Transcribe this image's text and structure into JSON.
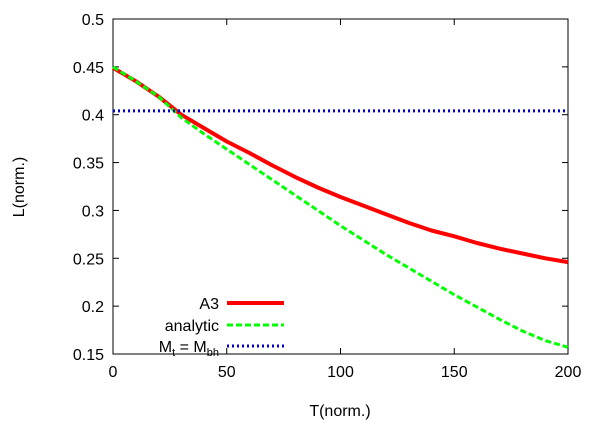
{
  "chart_data": {
    "type": "line",
    "xlabel": "T(norm.)",
    "ylabel": "L(norm.)",
    "xlim": [
      0,
      200
    ],
    "ylim": [
      0.15,
      0.5
    ],
    "x_ticks": [
      "0",
      "50",
      "100",
      "150",
      "200"
    ],
    "y_ticks": [
      "0.15",
      "0.2",
      "0.25",
      "0.3",
      "0.35",
      "0.4",
      "0.45",
      "0.5"
    ],
    "grid": false,
    "legend_position": "bottom-left",
    "series": [
      {
        "name": "A3",
        "style": "solid",
        "color": "#ff0000",
        "x": [
          0,
          10,
          20,
          30,
          40,
          50,
          60,
          70,
          80,
          90,
          100,
          110,
          120,
          130,
          140,
          150,
          160,
          170,
          180,
          190,
          200
        ],
        "y": [
          0.449,
          0.435,
          0.419,
          0.4,
          0.386,
          0.372,
          0.36,
          0.347,
          0.335,
          0.324,
          0.314,
          0.305,
          0.296,
          0.287,
          0.279,
          0.273,
          0.266,
          0.26,
          0.255,
          0.25,
          0.246
        ]
      },
      {
        "name": "analytic",
        "style": "dashed",
        "color": "#00ff00",
        "x": [
          0,
          10,
          20,
          30,
          40,
          50,
          60,
          70,
          80,
          90,
          100,
          110,
          120,
          130,
          140,
          150,
          160,
          170,
          180,
          190,
          200
        ],
        "y": [
          0.45,
          0.435,
          0.419,
          0.397,
          0.38,
          0.364,
          0.348,
          0.332,
          0.316,
          0.3,
          0.284,
          0.269,
          0.254,
          0.24,
          0.226,
          0.212,
          0.199,
          0.186,
          0.174,
          0.164,
          0.157
        ]
      },
      {
        "name": "M_t = M_bh",
        "style": "dotted",
        "color": "#0000cc",
        "x": [
          0,
          200
        ],
        "y": [
          0.404,
          0.404
        ]
      }
    ],
    "legend": {
      "a3": "A3",
      "analytic": "analytic",
      "mt_main": "M",
      "mt_sub": "t",
      "mt_eq": " = M",
      "mt_sub2": "bh"
    }
  }
}
